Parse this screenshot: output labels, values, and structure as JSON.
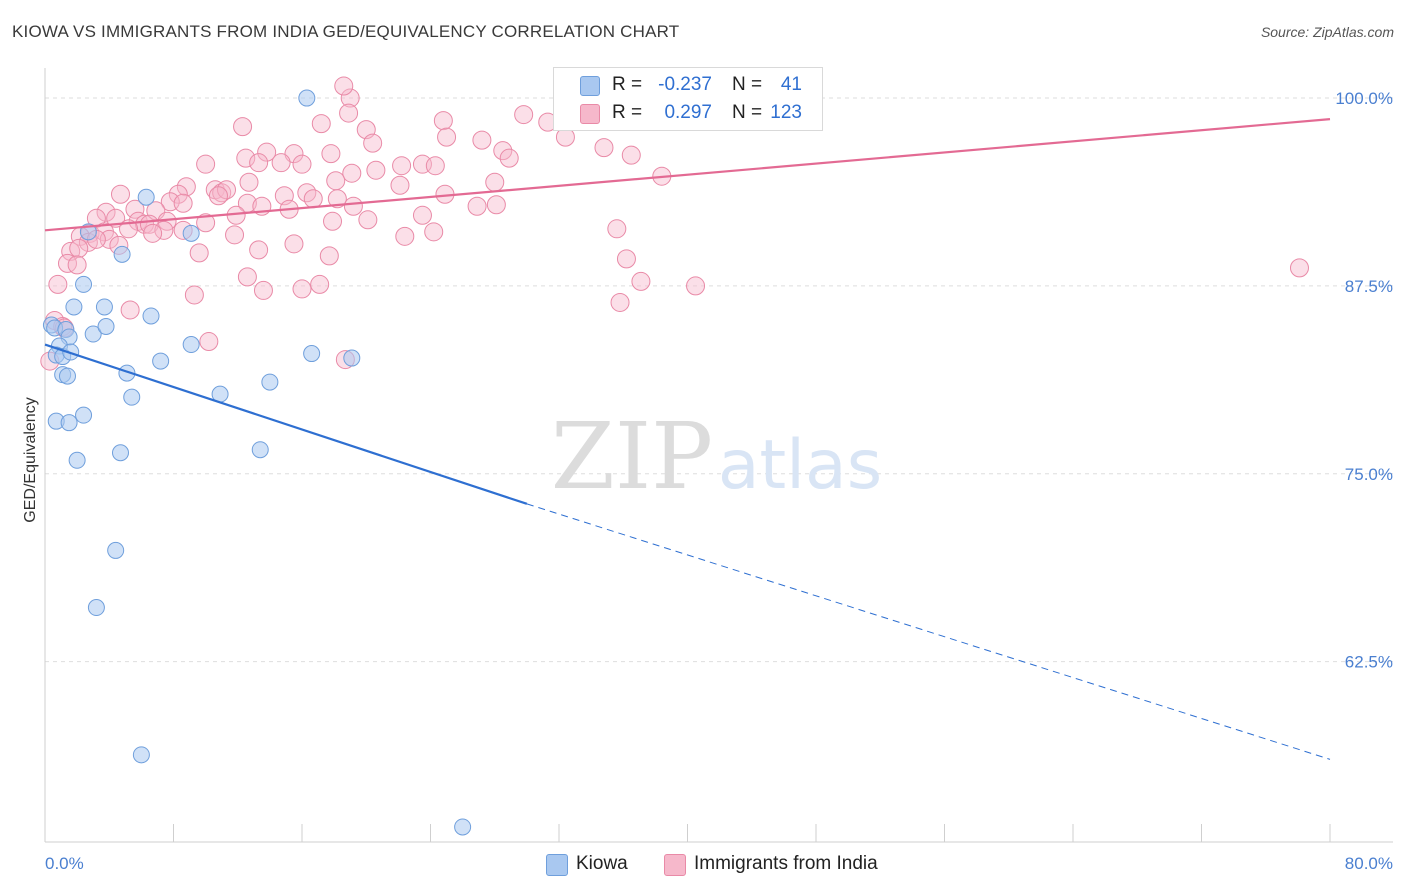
{
  "title": "KIOWA VS IMMIGRANTS FROM INDIA GED/EQUIVALENCY CORRELATION CHART",
  "source": "Source: ZipAtlas.com",
  "watermark": {
    "zip": "ZIP",
    "atlas": "atlas"
  },
  "colors": {
    "kiowa_fill": "#a9c8f0",
    "kiowa_stroke": "#6f9fdc",
    "kiowa_line": "#2e6fd1",
    "india_fill": "#f6b8cb",
    "india_stroke": "#e98aa7",
    "india_line": "#e36a93",
    "tick_text": "#4a7fd0",
    "grid": "#dedede"
  },
  "legend": {
    "r_label": "R =",
    "n_label": "N =",
    "kiowa": {
      "r": "-0.237",
      "n": "41"
    },
    "india": {
      "r": "0.297",
      "n": "123"
    }
  },
  "bottom_legend": {
    "kiowa": "Kiowa",
    "india": "Immigrants from India"
  },
  "chart_data": {
    "type": "scatter",
    "title": "KIOWA VS IMMIGRANTS FROM INDIA GED/EQUIVALENCY CORRELATION CHART",
    "xlabel": "",
    "ylabel": "GED/Equivalency",
    "xlim": [
      0,
      80
    ],
    "ylim": [
      50.5,
      102
    ],
    "x_tick_labels": [
      "0.0%",
      "80.0%"
    ],
    "y_ticks": [
      62.5,
      75.0,
      87.5,
      100.0
    ],
    "y_tick_labels": [
      "62.5%",
      "75.0%",
      "87.5%",
      "100.0%"
    ],
    "grid": true,
    "series": [
      {
        "name": "Kiowa",
        "trend": {
          "x0": 0,
          "y0": 83.6,
          "x1": 30,
          "y1": 73.0,
          "dashed_to_x": 80,
          "dashed_to_y": 56.0
        },
        "points": [
          [
            16.3,
            100.0
          ],
          [
            6.3,
            93.4
          ],
          [
            9.1,
            91.0
          ],
          [
            2.7,
            91.1
          ],
          [
            4.8,
            89.6
          ],
          [
            2.4,
            87.6
          ],
          [
            1.8,
            86.1
          ],
          [
            3.7,
            86.1
          ],
          [
            6.6,
            85.5
          ],
          [
            0.4,
            84.9
          ],
          [
            0.6,
            84.7
          ],
          [
            1.3,
            84.6
          ],
          [
            3.0,
            84.3
          ],
          [
            3.8,
            84.8
          ],
          [
            1.5,
            84.1
          ],
          [
            0.9,
            83.5
          ],
          [
            9.1,
            83.6
          ],
          [
            0.7,
            82.9
          ],
          [
            1.1,
            82.8
          ],
          [
            1.6,
            83.1
          ],
          [
            16.6,
            83.0
          ],
          [
            7.2,
            82.5
          ],
          [
            19.1,
            82.7
          ],
          [
            1.1,
            81.6
          ],
          [
            1.4,
            81.5
          ],
          [
            5.1,
            81.7
          ],
          [
            14.0,
            81.1
          ],
          [
            10.9,
            80.3
          ],
          [
            5.4,
            80.1
          ],
          [
            2.4,
            78.9
          ],
          [
            0.7,
            78.5
          ],
          [
            1.5,
            78.4
          ],
          [
            4.7,
            76.4
          ],
          [
            13.4,
            76.6
          ],
          [
            2.0,
            75.9
          ],
          [
            4.4,
            69.9
          ],
          [
            3.2,
            66.1
          ],
          [
            6.0,
            56.3
          ],
          [
            26.0,
            51.5
          ]
        ]
      },
      {
        "name": "Immigrants from India",
        "trend": {
          "x0": 0,
          "y0": 91.2,
          "x1": 80,
          "y1": 98.6
        },
        "points": [
          [
            19.0,
            100.0
          ],
          [
            18.9,
            99.0
          ],
          [
            29.8,
            98.9
          ],
          [
            31.3,
            98.4
          ],
          [
            12.3,
            98.1
          ],
          [
            17.2,
            98.3
          ],
          [
            24.8,
            98.5
          ],
          [
            20.0,
            97.9
          ],
          [
            25.0,
            97.4
          ],
          [
            27.2,
            97.2
          ],
          [
            20.4,
            97.0
          ],
          [
            32.4,
            97.4
          ],
          [
            34.8,
            96.7
          ],
          [
            28.5,
            96.5
          ],
          [
            12.5,
            96.0
          ],
          [
            13.8,
            96.4
          ],
          [
            15.5,
            96.3
          ],
          [
            17.8,
            96.3
          ],
          [
            28.9,
            96.0
          ],
          [
            36.5,
            96.2
          ],
          [
            10.0,
            95.6
          ],
          [
            13.3,
            95.7
          ],
          [
            14.7,
            95.7
          ],
          [
            16.0,
            95.6
          ],
          [
            22.2,
            95.5
          ],
          [
            23.5,
            95.6
          ],
          [
            24.3,
            95.5
          ],
          [
            19.1,
            95.0
          ],
          [
            20.6,
            95.2
          ],
          [
            38.4,
            94.8
          ],
          [
            8.8,
            94.1
          ],
          [
            10.6,
            93.9
          ],
          [
            11.0,
            93.7
          ],
          [
            11.3,
            93.9
          ],
          [
            12.7,
            94.4
          ],
          [
            18.1,
            94.5
          ],
          [
            22.1,
            94.2
          ],
          [
            28.0,
            94.4
          ],
          [
            4.7,
            93.6
          ],
          [
            8.3,
            93.6
          ],
          [
            14.9,
            93.5
          ],
          [
            16.3,
            93.7
          ],
          [
            16.7,
            93.3
          ],
          [
            18.2,
            93.3
          ],
          [
            24.9,
            93.6
          ],
          [
            10.8,
            93.5
          ],
          [
            5.6,
            92.6
          ],
          [
            7.8,
            93.1
          ],
          [
            8.6,
            93.0
          ],
          [
            12.6,
            93.0
          ],
          [
            13.5,
            92.8
          ],
          [
            15.2,
            92.6
          ],
          [
            19.2,
            92.8
          ],
          [
            26.9,
            92.8
          ],
          [
            28.1,
            92.9
          ],
          [
            3.8,
            92.4
          ],
          [
            6.9,
            92.5
          ],
          [
            11.9,
            92.2
          ],
          [
            3.2,
            92.0
          ],
          [
            4.4,
            92.0
          ],
          [
            5.8,
            91.8
          ],
          [
            6.2,
            91.6
          ],
          [
            7.6,
            91.8
          ],
          [
            10.0,
            91.7
          ],
          [
            17.9,
            91.8
          ],
          [
            20.1,
            91.9
          ],
          [
            23.5,
            92.2
          ],
          [
            5.2,
            91.3
          ],
          [
            6.5,
            91.6
          ],
          [
            7.4,
            91.2
          ],
          [
            2.8,
            91.0
          ],
          [
            3.7,
            91.1
          ],
          [
            4.0,
            90.6
          ],
          [
            6.7,
            91.0
          ],
          [
            8.6,
            91.2
          ],
          [
            11.8,
            90.9
          ],
          [
            22.4,
            90.8
          ],
          [
            24.2,
            91.1
          ],
          [
            35.6,
            91.3
          ],
          [
            2.2,
            90.8
          ],
          [
            2.7,
            90.4
          ],
          [
            3.2,
            90.6
          ],
          [
            4.6,
            90.2
          ],
          [
            15.5,
            90.3
          ],
          [
            1.6,
            89.8
          ],
          [
            2.1,
            90.0
          ],
          [
            9.6,
            89.7
          ],
          [
            13.3,
            89.9
          ],
          [
            17.7,
            89.5
          ],
          [
            36.2,
            89.3
          ],
          [
            1.4,
            89.0
          ],
          [
            2.0,
            88.9
          ],
          [
            12.6,
            88.1
          ],
          [
            37.1,
            87.8
          ],
          [
            40.5,
            87.5
          ],
          [
            78.1,
            88.7
          ],
          [
            0.8,
            87.6
          ],
          [
            13.6,
            87.2
          ],
          [
            16.0,
            87.3
          ],
          [
            17.1,
            87.6
          ],
          [
            9.3,
            86.9
          ],
          [
            35.8,
            86.4
          ],
          [
            5.3,
            85.9
          ],
          [
            0.6,
            85.2
          ],
          [
            1.1,
            84.8
          ],
          [
            1.2,
            84.7
          ],
          [
            10.2,
            83.8
          ],
          [
            18.7,
            82.6
          ],
          [
            0.3,
            82.5
          ],
          [
            18.6,
            100.8
          ]
        ]
      }
    ]
  }
}
